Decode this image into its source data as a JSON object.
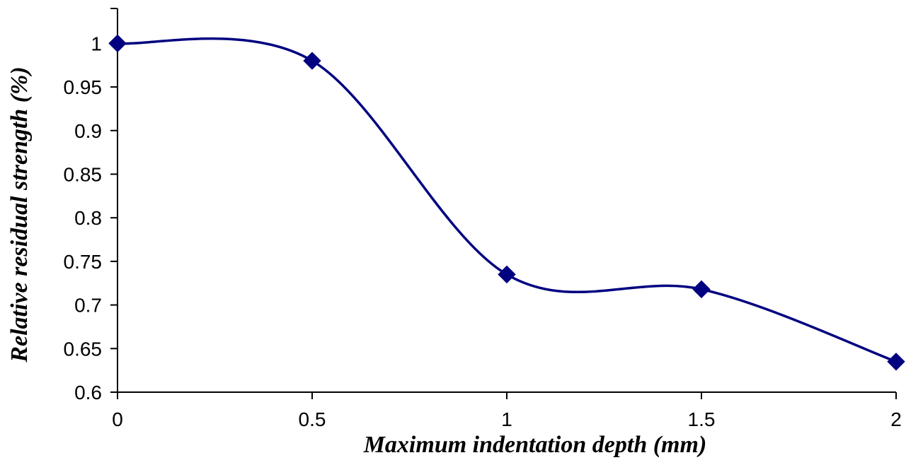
{
  "chart_data": {
    "type": "line",
    "title": "",
    "xlabel": "Maximum indentation depth (mm)",
    "ylabel": "Relative residual strength (%)",
    "x": [
      0,
      0.5,
      1,
      1.5,
      2
    ],
    "x_tick_labels": [
      "0",
      "0.5",
      "1",
      "1.5",
      "2"
    ],
    "y_tick_labels": [
      "0.6",
      "0.65",
      "0.7",
      "0.75",
      "0.8",
      "0.85",
      "0.9",
      "0.95",
      "1"
    ],
    "y_ticks": [
      0.6,
      0.65,
      0.7,
      0.75,
      0.8,
      0.85,
      0.9,
      0.95,
      1
    ],
    "xlim": [
      0,
      2
    ],
    "ylim": [
      0.6,
      1.04
    ],
    "grid": false,
    "legend": "none",
    "series": [
      {
        "values": [
          1.0,
          0.98,
          0.735,
          0.718,
          0.635
        ],
        "color": "#000080",
        "marker": "diamond",
        "line": "smooth"
      }
    ]
  }
}
